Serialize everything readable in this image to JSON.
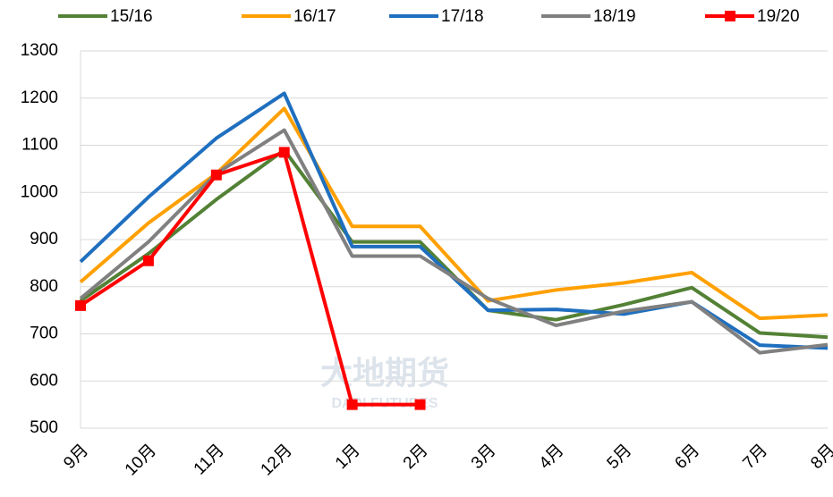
{
  "chart_data": {
    "type": "line",
    "categories": [
      "9月",
      "10月",
      "11月",
      "12月",
      "1月",
      "2月",
      "3月",
      "4月",
      "5月",
      "6月",
      "7月",
      "8月"
    ],
    "series": [
      {
        "name": "15/16",
        "color": "#538135",
        "values": [
          770,
          870,
          985,
          1090,
          895,
          895,
          750,
          730,
          762,
          798,
          702,
          693
        ]
      },
      {
        "name": "16/17",
        "color": "#ffa000",
        "values": [
          810,
          935,
          1040,
          1178,
          928,
          928,
          770,
          793,
          808,
          830,
          733,
          740
        ]
      },
      {
        "name": "17/18",
        "color": "#1f6fbf",
        "values": [
          853,
          990,
          1115,
          1210,
          885,
          885,
          750,
          752,
          742,
          768,
          676,
          670
        ]
      },
      {
        "name": "18/19",
        "color": "#808080",
        "values": [
          775,
          895,
          1040,
          1132,
          865,
          865,
          775,
          718,
          748,
          768,
          660,
          677
        ]
      },
      {
        "name": "19/20",
        "color": "#ff0000",
        "marker": "square",
        "values": [
          760,
          855,
          1037,
          1085,
          550,
          550,
          null,
          null,
          null,
          null,
          null,
          null
        ]
      }
    ],
    "ylim": [
      500,
      1300
    ],
    "yticks": [
      500,
      600,
      700,
      800,
      900,
      1000,
      1100,
      1200,
      1300
    ],
    "grid": true,
    "legend": "top",
    "watermark": [
      "大地期货",
      "DADI FUTURES"
    ]
  }
}
